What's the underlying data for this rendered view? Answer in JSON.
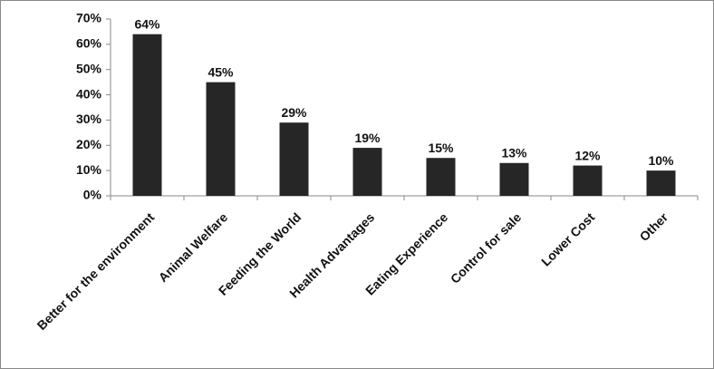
{
  "chart_data": {
    "type": "bar",
    "categories": [
      "Better for the environment",
      "Animal Welfare",
      "Feeding the World",
      "Health Advantages",
      "Eating Experience",
      "Control for sale",
      "Lower Cost",
      "Other"
    ],
    "values": [
      64,
      45,
      29,
      19,
      15,
      13,
      12,
      10
    ],
    "value_labels": [
      "64%",
      "45%",
      "29%",
      "19%",
      "15%",
      "13%",
      "12%",
      "10%"
    ],
    "color": "#262626",
    "ylim": [
      0,
      70
    ],
    "yticks": [
      {
        "value": 0,
        "label": "0%"
      },
      {
        "value": 10,
        "label": "10%"
      },
      {
        "value": 20,
        "label": "20%"
      },
      {
        "value": 30,
        "label": "30%"
      },
      {
        "value": 40,
        "label": "40%"
      },
      {
        "value": 50,
        "label": "50%"
      },
      {
        "value": 60,
        "label": "60%"
      },
      {
        "value": 70,
        "label": "70%"
      }
    ],
    "grid": false
  }
}
